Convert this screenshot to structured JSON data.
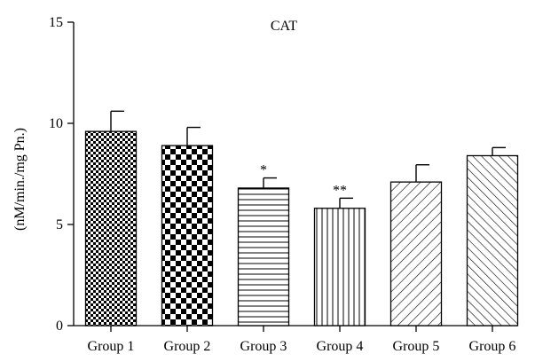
{
  "chart_data": {
    "type": "bar",
    "title": "CAT",
    "xlabel": "",
    "ylabel": "(nM/min./mg Pn.)",
    "ylim": [
      0,
      15
    ],
    "yticks": [
      0,
      5,
      10,
      15
    ],
    "categories": [
      "Group 1",
      "Group 2",
      "Group 3",
      "Group 4",
      "Group 5",
      "Group 6"
    ],
    "values": [
      9.6,
      8.9,
      6.8,
      5.8,
      7.1,
      8.4
    ],
    "errors": [
      1.0,
      0.9,
      0.5,
      0.5,
      0.85,
      0.4
    ],
    "significance": [
      "",
      "",
      "*",
      "**",
      "",
      ""
    ],
    "patterns": [
      "fine-checker",
      "checker",
      "horizontal-lines",
      "vertical-lines",
      "diagonal-forward",
      "diagonal-back"
    ],
    "bar_color": "#000000",
    "grid": false
  }
}
